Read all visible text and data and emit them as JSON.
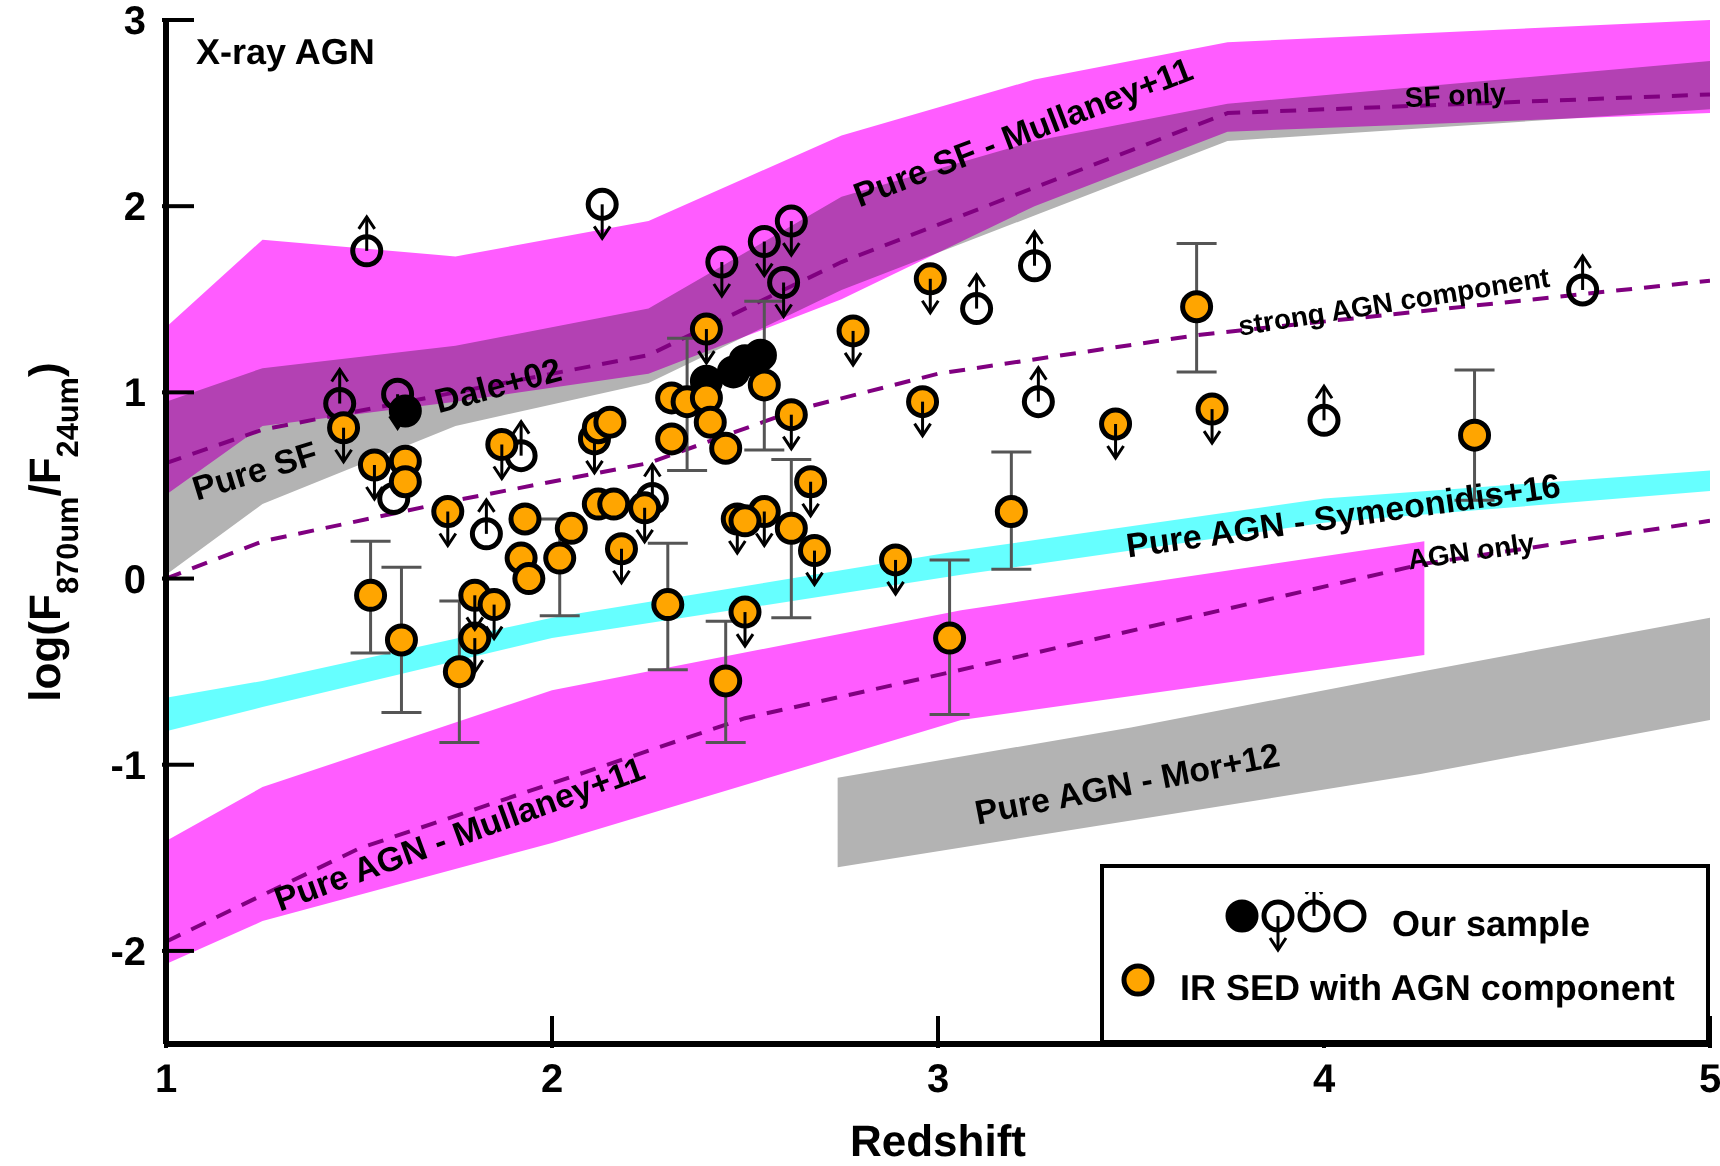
{
  "chart_data": {
    "type": "scatter",
    "xlabel": "Redshift",
    "ylabel": "log(F$_{870um}$/F$_{24um}$)",
    "xlim": [
      1,
      5
    ],
    "xticks": [
      1,
      2,
      3,
      4,
      5
    ],
    "ylim": [
      -2.5,
      3
    ],
    "yticks": [
      -2,
      -1,
      0,
      1,
      2,
      3
    ],
    "legend": "bottom right",
    "annotations": [
      "X-ray AGN",
      "Pure SF - Mullaney+11",
      "SF only",
      "strong AGN component",
      "Pure SF",
      "Dale+02",
      "Pure AGN - Symeonidis+16",
      "AGN only",
      "Pure AGN - Mullaney+11",
      "Pure AGN - Mor+12"
    ],
    "series": [
      {
        "type": "line",
        "color": "#ff5cff",
        "x": [
          1,
          1.25,
          1.75,
          2.25,
          2.5,
          2.75,
          3.25,
          3.75,
          5
        ],
        "values": [
          null,
          null,
          null,
          null,
          null,
          null,
          null,
          null,
          null
        ],
        "lower": [
          0.45,
          0.82,
          0.95,
          1.1,
          1.3,
          1.5,
          2.0,
          2.4,
          2.5
        ],
        "upper": [
          1.35,
          1.82,
          1.73,
          1.92,
          2.15,
          2.38,
          2.68,
          2.88,
          3.0
        ]
      },
      {
        "type": "line",
        "color": "#b3b3b3",
        "x": [
          1,
          1.25,
          1.75,
          2.25,
          2.75,
          3.25,
          3.75,
          5
        ],
        "values": [
          null,
          null,
          null,
          null,
          null,
          null,
          null,
          null
        ],
        "lower": [
          0.02,
          0.4,
          0.82,
          1.05,
          1.55,
          1.95,
          2.35,
          2.52
        ],
        "upper": [
          0.95,
          1.13,
          1.25,
          1.45,
          2.05,
          2.35,
          2.55,
          2.78
        ]
      },
      {
        "type": "line",
        "color": "#66ffff",
        "x": [
          1,
          1.25,
          2.0,
          3.06,
          4.0,
          5
        ],
        "values": [
          null,
          null,
          null,
          null,
          null,
          null
        ],
        "lower": [
          -0.82,
          -0.69,
          -0.32,
          0.02,
          0.3,
          0.47
        ],
        "upper": [
          -0.64,
          -0.55,
          -0.21,
          0.15,
          0.43,
          0.58
        ]
      },
      {
        "type": "line",
        "color": "#ff5cff",
        "x": [
          1,
          1.25,
          2.0,
          3.06,
          4.26
        ],
        "values": [
          null,
          null,
          null,
          null,
          null
        ],
        "lower": [
          -2.07,
          -1.84,
          -1.42,
          -0.76,
          -0.41
        ],
        "upper": [
          -1.41,
          -1.12,
          -0.6,
          -0.17,
          0.2
        ]
      },
      {
        "type": "line",
        "color": "#b3b3b3",
        "x": [
          2.74,
          3.5,
          4.25,
          5
        ],
        "values": [
          null,
          null,
          null,
          null
        ],
        "lower": [
          -1.55,
          -1.3,
          -1.05,
          -0.76
        ],
        "upper": [
          -1.07,
          -0.8,
          -0.5,
          -0.21
        ]
      },
      {
        "type": "line",
        "color": "#800080",
        "line_style": "dashed",
        "x": [
          1,
          1.25,
          1.75,
          2.25,
          2.75,
          3.25,
          3.75,
          5
        ],
        "values": [
          0.62,
          0.8,
          1.0,
          1.2,
          1.7,
          2.1,
          2.5,
          2.6
        ]
      },
      {
        "type": "line",
        "color": "#800080",
        "line_style": "dashed",
        "x": [
          1,
          1.25,
          1.75,
          2.25,
          2.64,
          3.0,
          3.68,
          5
        ],
        "values": [
          0.0,
          0.2,
          0.42,
          0.62,
          0.91,
          1.1,
          1.31,
          1.6
        ]
      },
      {
        "type": "line",
        "color": "#800080",
        "line_style": "dashed",
        "x": [
          1,
          1.5,
          2,
          2.5,
          3.06,
          4.26,
          5
        ],
        "values": [
          -1.95,
          -1.45,
          -1.1,
          -0.75,
          -0.49,
          0.08,
          0.31
        ]
      },
      {
        "name": "Our sample",
        "color": "#000000",
        "marker": "circle",
        "x": [
          1.62,
          2.4,
          2.47,
          2.5,
          2.54
        ],
        "values": [
          0.9,
          1.06,
          1.11,
          1.17,
          1.2
        ]
      },
      {
        "color": "#000000",
        "marker": "open-circle-down",
        "x": [
          2.13,
          2.44,
          2.55,
          2.62,
          2.6,
          1.6
        ],
        "values": [
          2.01,
          1.7,
          1.81,
          1.92,
          1.59,
          0.99
        ]
      },
      {
        "color": "#000000",
        "marker": "open-circle-up",
        "x": [
          1.52,
          1.45,
          1.92,
          2.26,
          1.83,
          3.1,
          3.25,
          3.26,
          4.0,
          4.67
        ],
        "values": [
          1.76,
          0.94,
          0.66,
          0.43,
          0.24,
          1.45,
          1.68,
          0.95,
          0.85,
          1.55
        ]
      },
      {
        "color": "#000000",
        "marker": "open-circle",
        "x": [
          1.59
        ],
        "values": [
          0.43
        ]
      },
      {
        "color": "#ffa500",
        "marker": "circle-down",
        "x": [
          1.46,
          1.54,
          1.73,
          1.87,
          2.11,
          2.18,
          2.24,
          2.4,
          2.48,
          2.55,
          2.62,
          2.67,
          2.68,
          2.78,
          2.98,
          2.96,
          2.89,
          1.8,
          1.8,
          1.85,
          2.5,
          3.46,
          3.71
        ],
        "values": [
          0.81,
          0.61,
          0.36,
          0.72,
          0.75,
          0.16,
          0.38,
          1.34,
          0.32,
          0.36,
          0.88,
          0.52,
          0.15,
          1.33,
          1.61,
          0.95,
          0.1,
          -0.32,
          -0.09,
          -0.14,
          -0.18,
          0.83,
          0.91
        ]
      },
      {
        "name": "IR SED with AGN component",
        "color": "#ffa500",
        "marker": "circle",
        "x": [
          1.62,
          1.62,
          1.93,
          1.92,
          1.94,
          2.02,
          2.05,
          2.12,
          2.15,
          2.12,
          2.16,
          2.31,
          2.31,
          2.35,
          2.4,
          2.41,
          2.45,
          2.5,
          2.55,
          2.62,
          1.53,
          1.61,
          1.76,
          2.3,
          2.45,
          3.03,
          3.19,
          3.67,
          4.39
        ],
        "values": [
          0.63,
          0.52,
          0.32,
          0.11,
          0.0,
          0.11,
          0.27,
          0.81,
          0.84,
          0.4,
          0.4,
          0.97,
          0.75,
          0.95,
          0.97,
          0.84,
          0.7,
          0.31,
          1.04,
          0.27,
          -0.09,
          -0.33,
          -0.5,
          -0.14,
          -0.55,
          -0.32,
          0.36,
          1.46,
          0.77
        ],
        "errors": [
          null,
          null,
          null,
          null,
          null,
          [
            -0.2,
            0.32
          ],
          null,
          null,
          null,
          null,
          null,
          null,
          null,
          [
            0.58,
            1.29
          ],
          null,
          null,
          null,
          null,
          [
            0.69,
            1.49
          ],
          [
            -0.21,
            0.64
          ],
          [
            -0.4,
            0.2
          ],
          [
            -0.72,
            0.06
          ],
          [
            -0.88,
            -0.12
          ],
          [
            -0.49,
            0.19
          ],
          [
            -0.88,
            -0.23
          ],
          [
            -0.73,
            0.1
          ],
          [
            0.05,
            0.68
          ],
          [
            1.11,
            1.8
          ],
          [
            0.42,
            1.12
          ]
        ]
      }
    ]
  }
}
